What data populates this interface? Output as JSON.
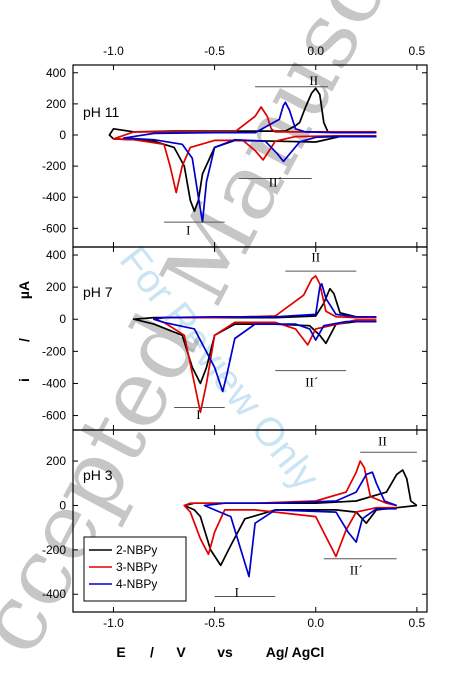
{
  "chart_data": {
    "type": "line",
    "title": "",
    "xlabel": "E / V vs Ag/ AgCl",
    "xlabel_parts": [
      "E",
      "/",
      "V",
      "vs",
      "Ag/ AgCl"
    ],
    "ylabel": "i / µA",
    "ylabel_parts": [
      "i",
      "/",
      "µA"
    ],
    "xlim": [
      -1.2,
      0.55
    ],
    "xticks": [
      -1.0,
      -0.5,
      0.0,
      0.5
    ],
    "xtick_labels": [
      "-1.0",
      "-0.5",
      "0.0",
      "0.5"
    ],
    "top_axis_ticks_mirrored": true,
    "grid": false,
    "legend": {
      "placement": "bottom-left of lowest panel",
      "entries": [
        "2-NBPy",
        "3-NBPy",
        "4-NBPy"
      ]
    },
    "series_colors": {
      "2-NBPy": "#000000",
      "3-NBPy": "#e00000",
      "4-NBPy": "#0000cc"
    },
    "panels": [
      {
        "label": "pH 11",
        "ylim": [
          -720,
          450
        ],
        "yticks": [
          -600,
          -400,
          -200,
          0,
          200,
          400
        ],
        "ytick_labels": [
          "-600",
          "-400",
          "-200",
          "0",
          "200",
          "400"
        ],
        "annotations": [
          {
            "text": "II",
            "x": -0.01,
            "y": 320,
            "line": [
              -0.3,
              0.06,
              310
            ]
          },
          {
            "text": "II´",
            "x": -0.2,
            "y": -330,
            "line": [
              -0.38,
              -0.02,
              -280
            ]
          },
          {
            "text": "I",
            "x": -0.63,
            "y": -640,
            "line": [
              -0.75,
              -0.45,
              -560
            ]
          }
        ],
        "series": [
          {
            "name": "2-NBPy",
            "x": [
              0.3,
              0.12,
              0.0,
              -0.2,
              -0.4,
              -0.5,
              -0.56,
              -0.58,
              -0.6,
              -0.62,
              -0.65,
              -0.7,
              -0.8,
              -0.9,
              -1.0,
              -1.02,
              -1.0,
              -0.9,
              -0.7,
              -0.5,
              -0.3,
              -0.15,
              -0.1,
              -0.08,
              -0.05,
              -0.02,
              0.0,
              0.02,
              0.04,
              0.06,
              0.1,
              0.2,
              0.3
            ],
            "y": [
              -10,
              -10,
              -45,
              -40,
              -35,
              -80,
              -250,
              -420,
              -490,
              -420,
              -200,
              -80,
              -40,
              -30,
              -25,
              0,
              40,
              20,
              25,
              25,
              25,
              25,
              60,
              80,
              180,
              270,
              300,
              260,
              80,
              20,
              15,
              15,
              15
            ]
          },
          {
            "name": "3-NBPy",
            "x": [
              0.3,
              0.1,
              -0.1,
              -0.2,
              -0.26,
              -0.3,
              -0.36,
              -0.5,
              -0.62,
              -0.66,
              -0.69,
              -0.72,
              -0.75,
              -0.9,
              -1.0,
              -0.9,
              -0.6,
              -0.4,
              -0.3,
              -0.27,
              -0.24,
              -0.22,
              -0.2,
              -0.1,
              0.1,
              0.3
            ],
            "y": [
              -5,
              -5,
              -10,
              -40,
              -160,
              -100,
              -35,
              -35,
              -80,
              -200,
              -370,
              -200,
              -60,
              -30,
              -25,
              20,
              20,
              20,
              120,
              180,
              120,
              40,
              20,
              20,
              20,
              20
            ]
          },
          {
            "name": "4-NBPy",
            "x": [
              0.3,
              0.1,
              0.0,
              -0.08,
              -0.16,
              -0.19,
              -0.25,
              -0.4,
              -0.5,
              -0.54,
              -0.56,
              -0.58,
              -0.61,
              -0.66,
              -0.8,
              -0.95,
              -0.8,
              -0.5,
              -0.3,
              -0.18,
              -0.16,
              -0.15,
              -0.13,
              -0.1,
              -0.05,
              0.1,
              0.3
            ],
            "y": [
              -10,
              -10,
              -15,
              -45,
              -170,
              -120,
              -40,
              -30,
              -80,
              -300,
              -560,
              -400,
              -150,
              -60,
              -30,
              -20,
              10,
              15,
              15,
              100,
              190,
              210,
              160,
              40,
              20,
              15,
              15
            ]
          }
        ]
      },
      {
        "label": "pH 7",
        "ylim": [
          -690,
          450
        ],
        "yticks": [
          -600,
          -400,
          -200,
          0,
          200,
          400
        ],
        "ytick_labels": [
          "-600",
          "-400",
          "-200",
          "0",
          "200",
          "400"
        ],
        "annotations": [
          {
            "text": "II",
            "x": 0.0,
            "y": 360,
            "line": [
              -0.15,
              0.2,
              300
            ]
          },
          {
            "text": "II´",
            "x": -0.02,
            "y": -420,
            "line": [
              -0.2,
              0.15,
              -320
            ]
          },
          {
            "text": "I",
            "x": -0.58,
            "y": -620,
            "line": [
              -0.7,
              -0.45,
              -550
            ]
          }
        ],
        "series": [
          {
            "name": "2-NBPy",
            "x": [
              0.3,
              0.2,
              0.1,
              0.05,
              0.02,
              -0.03,
              -0.2,
              -0.4,
              -0.5,
              -0.54,
              -0.57,
              -0.61,
              -0.66,
              -0.8,
              -0.9,
              -0.8,
              -0.5,
              -0.2,
              0.0,
              0.04,
              0.07,
              0.09,
              0.12,
              0.2,
              0.3
            ],
            "y": [
              -15,
              -15,
              -30,
              -150,
              -100,
              -40,
              -30,
              -30,
              -100,
              -300,
              -400,
              -300,
              -100,
              -30,
              0,
              10,
              10,
              10,
              20,
              100,
              190,
              160,
              40,
              15,
              15
            ]
          },
          {
            "name": "3-NBPy",
            "x": [
              0.3,
              0.2,
              0.0,
              -0.04,
              -0.1,
              -0.2,
              -0.4,
              -0.5,
              -0.54,
              -0.57,
              -0.6,
              -0.65,
              -0.75,
              -0.8,
              -0.75,
              -0.5,
              -0.2,
              -0.06,
              -0.02,
              0.0,
              0.02,
              0.05,
              0.1,
              0.2,
              0.3
            ],
            "y": [
              -5,
              -5,
              -60,
              -160,
              -60,
              -20,
              -20,
              -100,
              -400,
              -580,
              -400,
              -100,
              -20,
              0,
              10,
              10,
              20,
              150,
              250,
              270,
              220,
              50,
              15,
              10,
              10
            ]
          },
          {
            "name": "4-NBPy",
            "x": [
              0.3,
              0.15,
              0.04,
              0.0,
              -0.03,
              -0.1,
              -0.3,
              -0.4,
              -0.44,
              -0.46,
              -0.5,
              -0.6,
              -0.75,
              -0.8,
              -0.75,
              -0.5,
              -0.2,
              0.0,
              0.02,
              0.03,
              0.05,
              0.1,
              0.2,
              0.3
            ],
            "y": [
              -15,
              -15,
              -40,
              -130,
              -60,
              -30,
              -30,
              -120,
              -350,
              -450,
              -300,
              -60,
              -20,
              0,
              10,
              15,
              15,
              30,
              200,
              220,
              130,
              30,
              15,
              15
            ]
          }
        ]
      },
      {
        "label": "pH 3",
        "ylim": [
          -480,
          340
        ],
        "yticks": [
          -400,
          -200,
          0,
          200
        ],
        "ytick_labels": [
          "-400",
          "-200",
          "0",
          "200"
        ],
        "annotations": [
          {
            "text": "II",
            "x": 0.33,
            "y": 270,
            "line": [
              0.22,
              0.5,
              240
            ]
          },
          {
            "text": "II´",
            "x": 0.2,
            "y": -310,
            "line": [
              0.04,
              0.4,
              -240
            ]
          },
          {
            "text": "I",
            "x": -0.39,
            "y": -410,
            "line": [
              -0.5,
              -0.2,
              -410
            ]
          }
        ],
        "series": [
          {
            "name": "2-NBPy",
            "x": [
              0.5,
              0.4,
              0.3,
              0.25,
              0.2,
              0.1,
              -0.2,
              -0.35,
              -0.42,
              -0.47,
              -0.52,
              -0.57,
              -0.6,
              -0.65,
              -0.6,
              -0.3,
              0.0,
              0.2,
              0.35,
              0.4,
              0.43,
              0.45,
              0.47,
              0.5
            ],
            "y": [
              0,
              -10,
              -20,
              -80,
              -30,
              -20,
              -20,
              -60,
              -180,
              -270,
              -200,
              -50,
              -20,
              0,
              10,
              10,
              10,
              20,
              60,
              140,
              160,
              120,
              20,
              0
            ]
          },
          {
            "name": "3-NBPy",
            "x": [
              0.4,
              0.3,
              0.2,
              0.15,
              0.1,
              0.0,
              -0.3,
              -0.45,
              -0.5,
              -0.53,
              -0.57,
              -0.62,
              -0.65,
              -0.62,
              -0.3,
              0.0,
              0.15,
              0.2,
              0.22,
              0.24,
              0.27,
              0.35,
              0.4
            ],
            "y": [
              -10,
              -10,
              -30,
              -110,
              -230,
              -50,
              -20,
              -20,
              -120,
              -220,
              -150,
              -30,
              0,
              10,
              10,
              20,
              60,
              150,
              200,
              170,
              40,
              10,
              0
            ]
          },
          {
            "name": "4-NBPy",
            "x": [
              0.4,
              0.3,
              0.23,
              0.2,
              0.16,
              0.1,
              -0.2,
              -0.3,
              -0.33,
              -0.37,
              -0.42,
              -0.5,
              -0.55,
              -0.45,
              -0.2,
              0.1,
              0.2,
              0.25,
              0.28,
              0.3,
              0.34,
              0.4
            ],
            "y": [
              -15,
              -15,
              -60,
              -165,
              -120,
              -30,
              -20,
              -80,
              -320,
              -200,
              -50,
              -20,
              0,
              10,
              10,
              20,
              60,
              140,
              150,
              100,
              20,
              0
            ]
          }
        ]
      }
    ]
  },
  "watermark": {
    "big_lines": [
      "ccepted Manuscript"
    ],
    "small_line": "For Review Only"
  }
}
